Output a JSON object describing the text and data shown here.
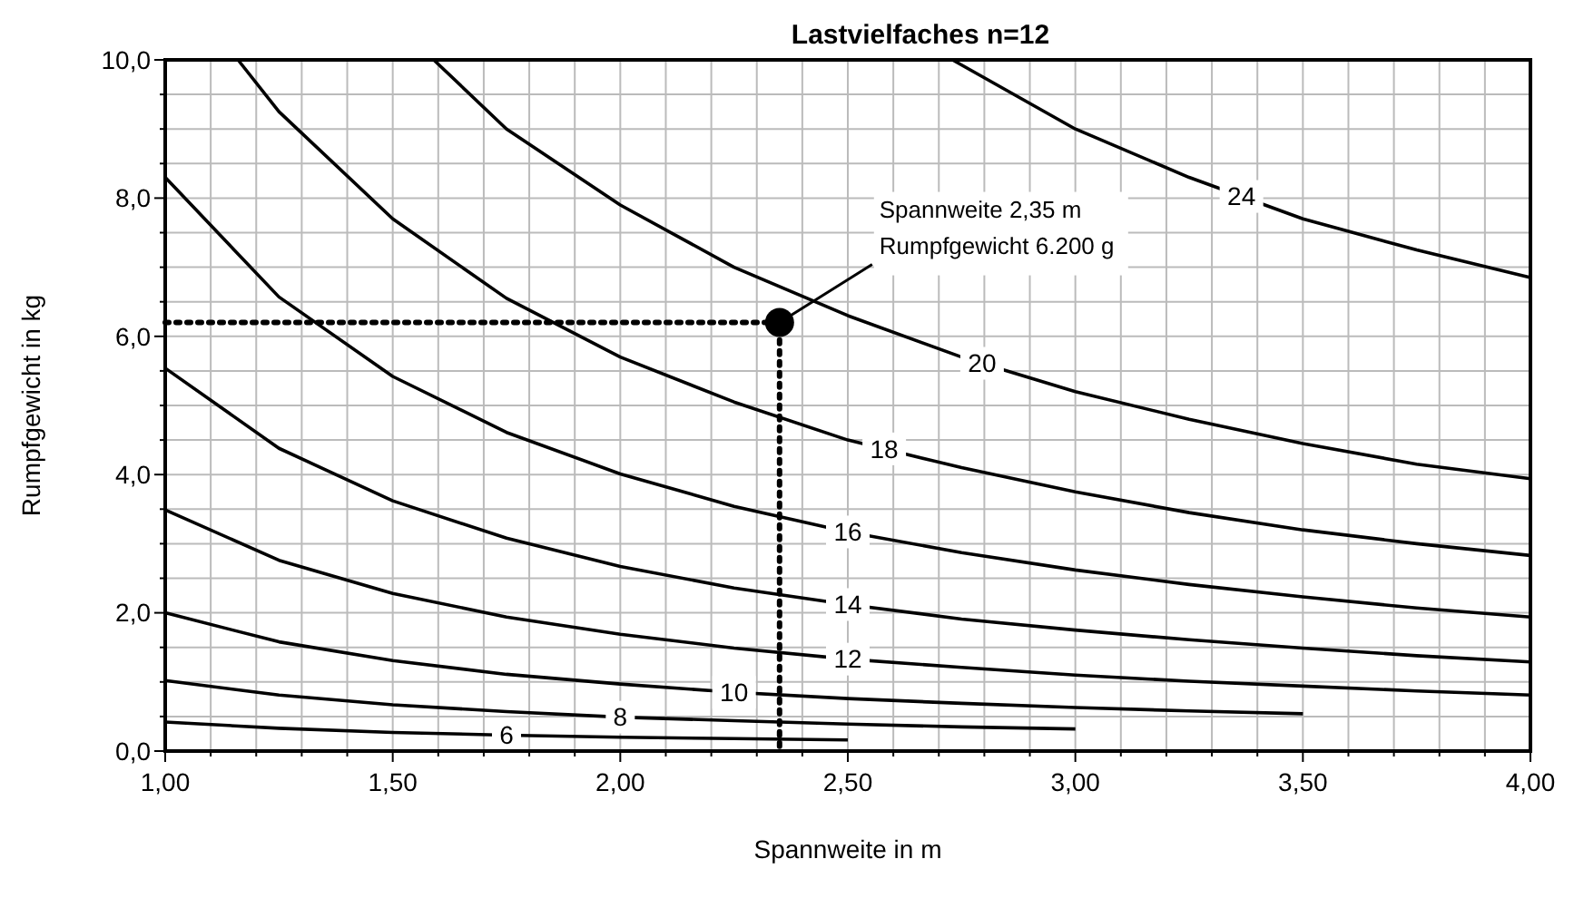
{
  "chart_data": {
    "type": "line",
    "title": "Lastvielfaches n=12",
    "xlabel": "Spannweite in m",
    "ylabel": "Rumpfgewicht in kg",
    "xlim": [
      1,
      4
    ],
    "ylim": [
      0,
      10
    ],
    "xticks": [
      {
        "value": 1,
        "label": "1,00"
      },
      {
        "value": 1.1,
        "label": null
      },
      {
        "value": 1.2,
        "label": null
      },
      {
        "value": 1.3,
        "label": null
      },
      {
        "value": 1.4,
        "label": null
      },
      {
        "value": 1.5,
        "label": "1,50"
      },
      {
        "value": 1.6,
        "label": null
      },
      {
        "value": 1.7,
        "label": null
      },
      {
        "value": 1.8,
        "label": null
      },
      {
        "value": 1.9,
        "label": null
      },
      {
        "value": 2,
        "label": "2,00"
      },
      {
        "value": 2.1,
        "label": null
      },
      {
        "value": 2.2,
        "label": null
      },
      {
        "value": 2.3,
        "label": null
      },
      {
        "value": 2.4,
        "label": null
      },
      {
        "value": 2.5,
        "label": "2,50"
      },
      {
        "value": 2.6,
        "label": null
      },
      {
        "value": 2.7,
        "label": null
      },
      {
        "value": 2.8,
        "label": null
      },
      {
        "value": 2.9,
        "label": null
      },
      {
        "value": 3,
        "label": "3,00"
      },
      {
        "value": 3.1,
        "label": null
      },
      {
        "value": 3.2,
        "label": null
      },
      {
        "value": 3.3,
        "label": null
      },
      {
        "value": 3.4,
        "label": null
      },
      {
        "value": 3.5,
        "label": "3,50"
      },
      {
        "value": 3.6,
        "label": null
      },
      {
        "value": 3.7,
        "label": null
      },
      {
        "value": 3.8,
        "label": null
      },
      {
        "value": 3.9,
        "label": null
      },
      {
        "value": 4,
        "label": "4,00"
      }
    ],
    "yticks": [
      {
        "value": 0,
        "label": "0,0"
      },
      {
        "value": 0.5,
        "label": null
      },
      {
        "value": 1,
        "label": null
      },
      {
        "value": 1.5,
        "label": null
      },
      {
        "value": 2,
        "label": "2,0"
      },
      {
        "value": 2.5,
        "label": null
      },
      {
        "value": 3,
        "label": null
      },
      {
        "value": 3.5,
        "label": null
      },
      {
        "value": 4,
        "label": "4,0"
      },
      {
        "value": 4.5,
        "label": null
      },
      {
        "value": 5,
        "label": null
      },
      {
        "value": 5.5,
        "label": null
      },
      {
        "value": 6,
        "label": "6,0"
      },
      {
        "value": 6.5,
        "label": null
      },
      {
        "value": 7,
        "label": null
      },
      {
        "value": 7.5,
        "label": null
      },
      {
        "value": 8,
        "label": "8,0"
      },
      {
        "value": 8.5,
        "label": null
      },
      {
        "value": 9,
        "label": null
      },
      {
        "value": 9.5,
        "label": null
      },
      {
        "value": 10,
        "label": "10,0"
      }
    ],
    "grid": true,
    "series": [
      {
        "name": "6",
        "color": "#000000",
        "x": [
          1,
          1.25,
          1.5,
          1.75,
          2,
          2.25,
          2.5
        ],
        "values": [
          0.42,
          0.33,
          0.27,
          0.23,
          0.2,
          0.18,
          0.16
        ]
      },
      {
        "name": "8",
        "color": "#000000",
        "x": [
          1,
          1.25,
          1.5,
          1.75,
          2,
          2.25,
          2.5,
          2.75,
          3
        ],
        "values": [
          1.02,
          0.81,
          0.67,
          0.57,
          0.49,
          0.44,
          0.39,
          0.35,
          0.32
        ]
      },
      {
        "name": "10",
        "color": "#000000",
        "x": [
          1,
          1.25,
          1.5,
          1.75,
          2,
          2.25,
          2.5,
          2.75,
          3,
          3.25,
          3.5
        ],
        "values": [
          2.0,
          1.58,
          1.31,
          1.11,
          0.97,
          0.85,
          0.76,
          0.69,
          0.63,
          0.58,
          0.54
        ]
      },
      {
        "name": "12",
        "color": "#000000",
        "x": [
          1,
          1.25,
          1.5,
          1.75,
          2,
          2.25,
          2.5,
          2.75,
          3,
          3.25,
          3.5,
          3.75,
          4
        ],
        "values": [
          3.49,
          2.76,
          2.28,
          1.94,
          1.69,
          1.49,
          1.33,
          1.21,
          1.1,
          1.01,
          0.94,
          0.87,
          0.81
        ]
      },
      {
        "name": "14",
        "color": "#000000",
        "x": [
          1,
          1.25,
          1.5,
          1.75,
          2,
          2.25,
          2.5,
          2.75,
          3,
          3.25,
          3.5,
          3.75,
          4
        ],
        "values": [
          5.54,
          4.38,
          3.62,
          3.08,
          2.67,
          2.36,
          2.12,
          1.91,
          1.75,
          1.61,
          1.49,
          1.38,
          1.29
        ]
      },
      {
        "name": "16",
        "color": "#000000",
        "x": [
          1,
          1.25,
          1.5,
          1.75,
          2,
          2.25,
          2.5,
          2.75,
          3,
          3.25,
          3.5,
          3.75,
          4
        ],
        "values": [
          8.3,
          6.57,
          5.42,
          4.61,
          4.01,
          3.54,
          3.17,
          2.87,
          2.62,
          2.41,
          2.23,
          2.07,
          1.94
        ]
      },
      {
        "name": "18",
        "color": "#000000",
        "x": [
          1.16,
          1.25,
          1.5,
          1.75,
          2,
          2.25,
          2.5,
          2.75,
          3,
          3.25,
          3.5,
          3.75,
          4
        ],
        "values": [
          10,
          9.25,
          7.7,
          6.55,
          5.7,
          5.05,
          4.5,
          4.1,
          3.75,
          3.45,
          3.2,
          3.0,
          2.83
        ]
      },
      {
        "name": "20",
        "color": "#000000",
        "x": [
          1.59,
          1.75,
          2,
          2.25,
          2.5,
          2.75,
          3,
          3.25,
          3.5,
          3.75,
          4
        ],
        "values": [
          10,
          9.0,
          7.9,
          7.0,
          6.3,
          5.7,
          5.2,
          4.8,
          4.45,
          4.15,
          3.94
        ]
      },
      {
        "name": "24",
        "color": "#000000",
        "x": [
          2.73,
          3,
          3.25,
          3.5,
          3.75,
          4
        ],
        "values": [
          10,
          9.0,
          8.3,
          7.7,
          7.25,
          6.85
        ]
      },
      {
        "type": "line",
        "line_style": "dotted",
        "color": "#000000",
        "x": [
          1,
          2.35,
          2.35
        ],
        "values": [
          6.2,
          6.2,
          0
        ]
      },
      {
        "type": "scatter",
        "marker": "circle",
        "color": "#000000",
        "x": [
          2.35
        ],
        "values": [
          6.2
        ]
      }
    ],
    "annotations": [
      {
        "text": "Spannweite 2,35 m\nRumpfgewicht 6.200 g",
        "x": 2.35,
        "y": 6.2
      }
    ]
  }
}
